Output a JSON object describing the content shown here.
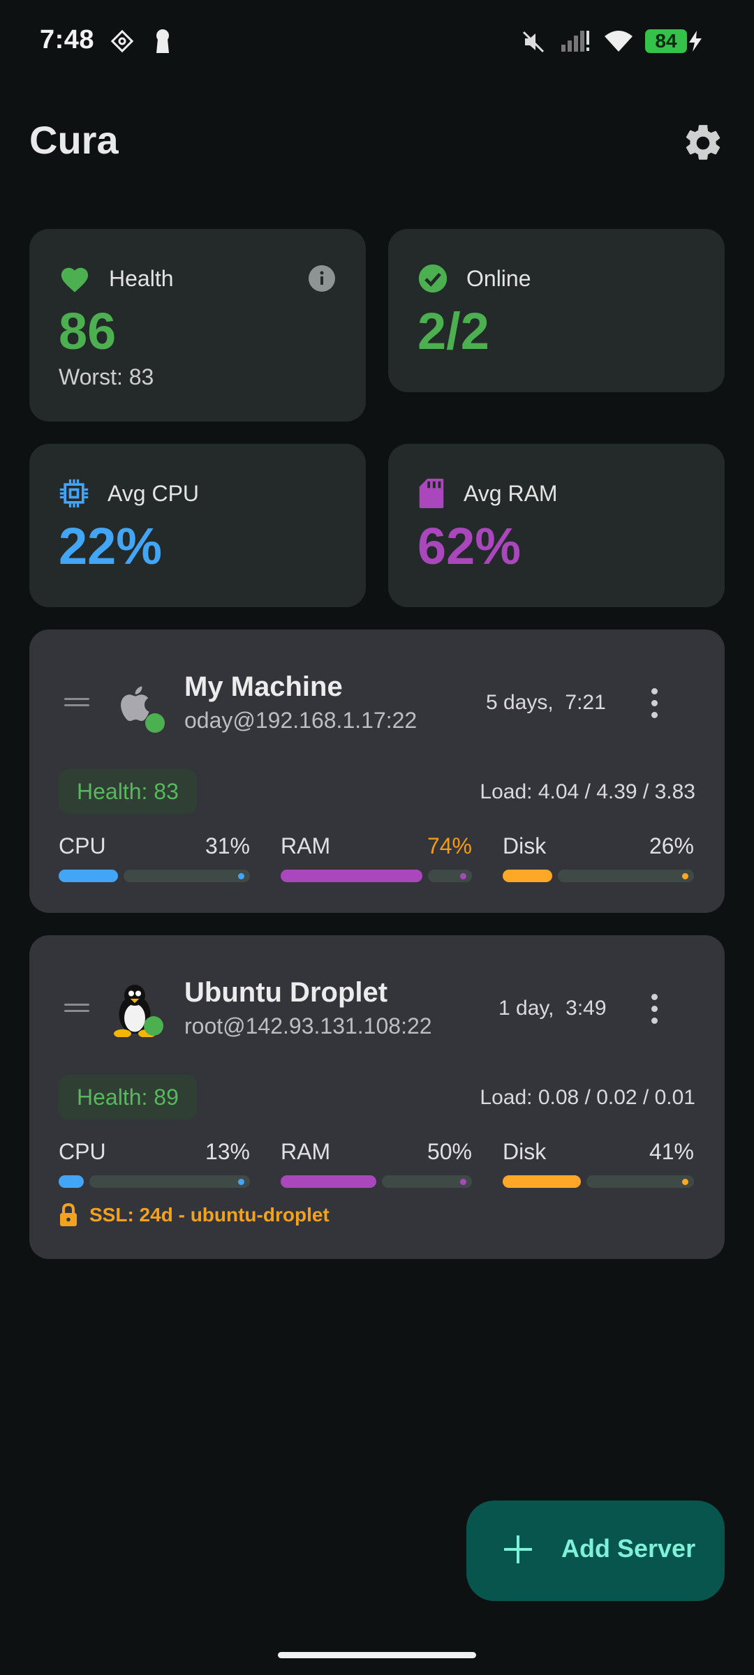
{
  "status_bar": {
    "time": "7:48",
    "battery": "84",
    "icons": [
      "vpn-key-icon",
      "keyhole-icon",
      "mute-icon",
      "signal-icon",
      "wifi-icon",
      "charging-icon"
    ]
  },
  "app": {
    "title": "Cura",
    "settings_icon": "gear-icon"
  },
  "summary": {
    "health": {
      "label": "Health",
      "value": "86",
      "sub": "Worst: 83",
      "color": "#4caf50"
    },
    "online": {
      "label": "Online",
      "value": "2/2",
      "color": "#4caf50"
    },
    "cpu": {
      "label": "Avg CPU",
      "value": "22%",
      "color": "#42a5f5"
    },
    "ram": {
      "label": "Avg RAM",
      "value": "62%",
      "color": "#ab47bc"
    }
  },
  "servers": [
    {
      "name": "My Machine",
      "address": "oday@192.168.1.17:22",
      "uptime": "5 days,  7:21",
      "os_icon": "apple-icon",
      "health": "Health: 83",
      "load": "Load: 4.04 / 4.39 / 3.83",
      "metrics": [
        {
          "label": "CPU",
          "value": "31%",
          "fraction": 0.31,
          "color": "#42a5f5",
          "value_color": "#e0e0e4"
        },
        {
          "label": "RAM",
          "value": "74%",
          "fraction": 0.74,
          "color": "#ab47bc",
          "value_color": "#f39c12"
        },
        {
          "label": "Disk",
          "value": "26%",
          "fraction": 0.26,
          "color": "#ffa726",
          "value_color": "#e0e0e4"
        }
      ]
    },
    {
      "name": "Ubuntu Droplet",
      "address": "root@142.93.131.108:22",
      "uptime": "1 day,  3:49",
      "os_icon": "linux-penguin-icon",
      "health": "Health: 89",
      "load": "Load: 0.08 / 0.02 / 0.01",
      "metrics": [
        {
          "label": "CPU",
          "value": "13%",
          "fraction": 0.13,
          "color": "#42a5f5",
          "value_color": "#e0e0e4"
        },
        {
          "label": "RAM",
          "value": "50%",
          "fraction": 0.5,
          "color": "#ab47bc",
          "value_color": "#e0e0e4"
        },
        {
          "label": "Disk",
          "value": "41%",
          "fraction": 0.41,
          "color": "#ffa726",
          "value_color": "#e0e0e4"
        }
      ],
      "ssl": "SSL: 24d - ubuntu-droplet"
    }
  ],
  "fab": {
    "label": "Add Server",
    "icon": "plus-icon"
  }
}
